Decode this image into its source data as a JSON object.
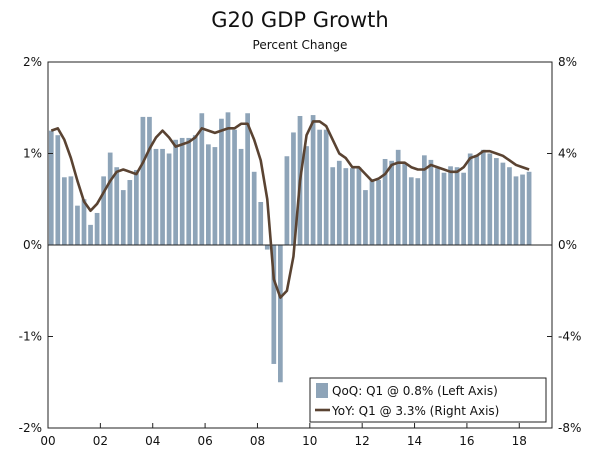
{
  "chart_data": {
    "type": "bar+line",
    "title": "G20 GDP Growth",
    "subtitle": "Percent Change",
    "left_axis": {
      "ylim": [
        -2,
        2
      ],
      "ticks": [
        "2%",
        "1%",
        "0%",
        "-1%",
        "-2%"
      ],
      "tick_values": [
        2,
        1,
        0,
        -1,
        -2
      ]
    },
    "right_axis": {
      "ylim": [
        -8,
        8
      ],
      "ticks": [
        "8%",
        "4%",
        "0%",
        "-4%",
        "-8%"
      ],
      "tick_values": [
        8,
        4,
        0,
        -4,
        -8
      ]
    },
    "x_ticks": [
      "00",
      "02",
      "04",
      "06",
      "08",
      "10",
      "12",
      "14",
      "16",
      "18"
    ],
    "x_tick_years": [
      2000,
      2002,
      2004,
      2006,
      2008,
      2010,
      2012,
      2014,
      2016,
      2018
    ],
    "x_range": [
      2000.0,
      2019.25
    ],
    "grid": false,
    "legend_position": "bottom-right",
    "colors": {
      "bars": "#8ea4b8",
      "line": "#5a4332",
      "axis": "#222222"
    },
    "series": [
      {
        "name": "QoQ",
        "legend": "QoQ: Q1 @ 0.8% (Left Axis)",
        "kind": "bar",
        "axis": "left",
        "values": [
          1.25,
          1.2,
          0.74,
          0.75,
          0.43,
          0.5,
          0.22,
          0.35,
          0.75,
          1.01,
          0.85,
          0.6,
          0.71,
          0.82,
          1.4,
          1.4,
          1.05,
          1.05,
          1.0,
          1.15,
          1.17,
          1.17,
          1.2,
          1.44,
          1.1,
          1.07,
          1.38,
          1.45,
          1.26,
          1.05,
          1.44,
          0.8,
          0.47,
          -0.05,
          -1.3,
          -1.5,
          0.97,
          1.23,
          1.41,
          1.08,
          1.42,
          1.26,
          1.26,
          0.85,
          0.92,
          0.84,
          0.84,
          0.85,
          0.6,
          0.72,
          0.71,
          0.94,
          0.92,
          1.04,
          0.89,
          0.74,
          0.73,
          0.98,
          0.93,
          0.84,
          0.79,
          0.86,
          0.85,
          0.79,
          1.0,
          0.98,
          1.04,
          1.0,
          0.95,
          0.9,
          0.85,
          0.75,
          0.77,
          0.8
        ]
      },
      {
        "name": "YoY",
        "legend": "YoY: Q1 @ 3.3% (Right Axis)",
        "kind": "line",
        "axis": "right",
        "values": [
          5.0,
          5.1,
          4.6,
          3.8,
          2.8,
          1.9,
          1.5,
          1.8,
          2.3,
          2.8,
          3.2,
          3.3,
          3.2,
          3.1,
          3.6,
          4.2,
          4.7,
          5.0,
          4.7,
          4.3,
          4.4,
          4.5,
          4.7,
          5.1,
          5.0,
          4.9,
          5.0,
          5.1,
          5.1,
          5.3,
          5.3,
          4.6,
          3.7,
          2.0,
          -1.5,
          -2.3,
          -2.0,
          -0.5,
          2.8,
          4.8,
          5.4,
          5.4,
          5.2,
          4.6,
          4.0,
          3.8,
          3.4,
          3.4,
          3.1,
          2.8,
          2.9,
          3.1,
          3.5,
          3.6,
          3.6,
          3.4,
          3.3,
          3.3,
          3.5,
          3.4,
          3.3,
          3.2,
          3.2,
          3.4,
          3.8,
          3.9,
          4.1,
          4.1,
          4.0,
          3.9,
          3.7,
          3.5,
          3.4,
          3.3
        ]
      }
    ]
  }
}
